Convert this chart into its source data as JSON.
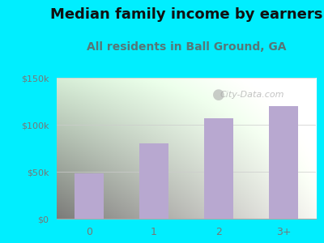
{
  "title": "Median family income by earners",
  "subtitle": "All residents in Ball Ground, GA",
  "categories": [
    "0",
    "1",
    "2",
    "3+"
  ],
  "values": [
    48000,
    80000,
    107000,
    120000
  ],
  "bar_color": "#b8a8d0",
  "ylim": [
    0,
    150000
  ],
  "yticks": [
    0,
    50000,
    100000,
    150000
  ],
  "ytick_labels": [
    "$0",
    "$50k",
    "$100k",
    "$150k"
  ],
  "bg_outer": "#00eeff",
  "watermark": "City-Data.com",
  "title_fontsize": 13,
  "subtitle_fontsize": 10,
  "title_color": "#111111",
  "subtitle_color": "#557777",
  "tick_color": "#777777"
}
